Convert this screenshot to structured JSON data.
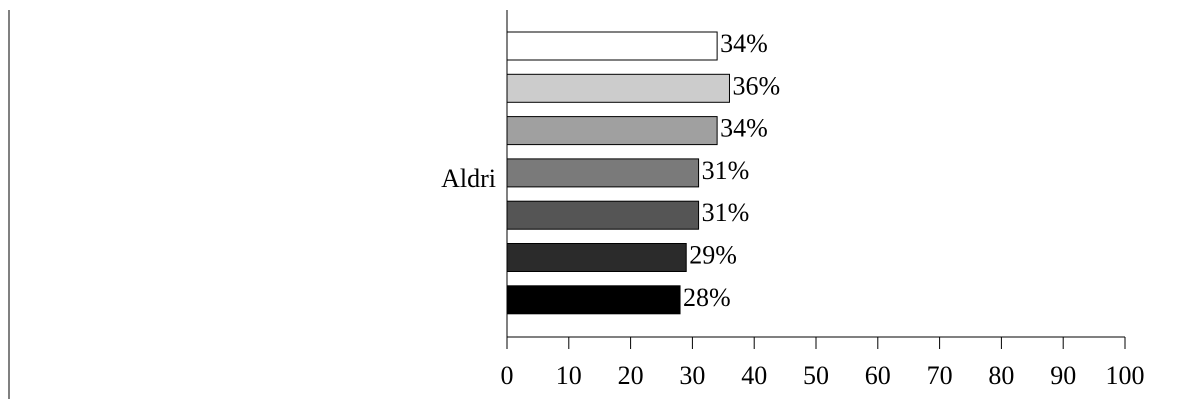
{
  "chart_data": {
    "type": "bar",
    "orientation": "horizontal",
    "title": "",
    "xlabel": "",
    "ylabel": "",
    "category": "Aldri",
    "xlim": [
      0,
      100
    ],
    "x_ticks": [
      "0",
      "10",
      "20",
      "30",
      "40",
      "50",
      "60",
      "70",
      "80",
      "90",
      "100"
    ],
    "grid": false,
    "legend": "none",
    "series": [
      {
        "value": 34,
        "label": "34%",
        "color": "#ffffff"
      },
      {
        "value": 36,
        "label": "36%",
        "color": "#cccccc"
      },
      {
        "value": 34,
        "label": "34%",
        "color": "#a0a0a0"
      },
      {
        "value": 31,
        "label": "31%",
        "color": "#7a7a7a"
      },
      {
        "value": 31,
        "label": "31%",
        "color": "#555555"
      },
      {
        "value": 29,
        "label": "29%",
        "color": "#2b2b2b"
      },
      {
        "value": 28,
        "label": "28%",
        "color": "#000000"
      }
    ]
  }
}
